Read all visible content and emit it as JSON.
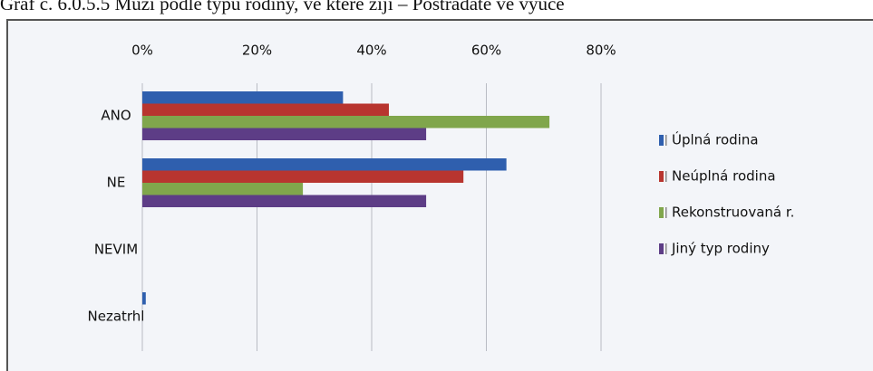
{
  "chart_data": {
    "type": "bar",
    "orientation": "horizontal",
    "title": "Graf č. 6.0.5.5 Muži podle typu rodiny, ve které žijí – Postrádáte ve výuce",
    "categories": [
      "ANO",
      "NE",
      "NEVIM",
      "Nezatrhl"
    ],
    "series": [
      {
        "name": "Úplná rodina",
        "color": "#2f5fae",
        "values": [
          35,
          63.5,
          0,
          0.6
        ]
      },
      {
        "name": "Neúplná rodina",
        "color": "#b8352f",
        "values": [
          43,
          56,
          0,
          0
        ]
      },
      {
        "name": "Rekonstruovaná r.",
        "color": "#80a64c",
        "values": [
          71,
          28,
          0,
          0
        ]
      },
      {
        "name": "Jiný typ rodiny",
        "color": "#5d3d86",
        "values": [
          49.5,
          49.5,
          0,
          0
        ]
      }
    ],
    "xlim": [
      0,
      80
    ],
    "xticks": [
      {
        "value": 0,
        "label": "0%"
      },
      {
        "value": 20,
        "label": "20%"
      },
      {
        "value": 40,
        "label": "40%"
      },
      {
        "value": 60,
        "label": "60%"
      },
      {
        "value": 80,
        "label": "80%"
      }
    ],
    "grid": true,
    "legend": "right"
  }
}
